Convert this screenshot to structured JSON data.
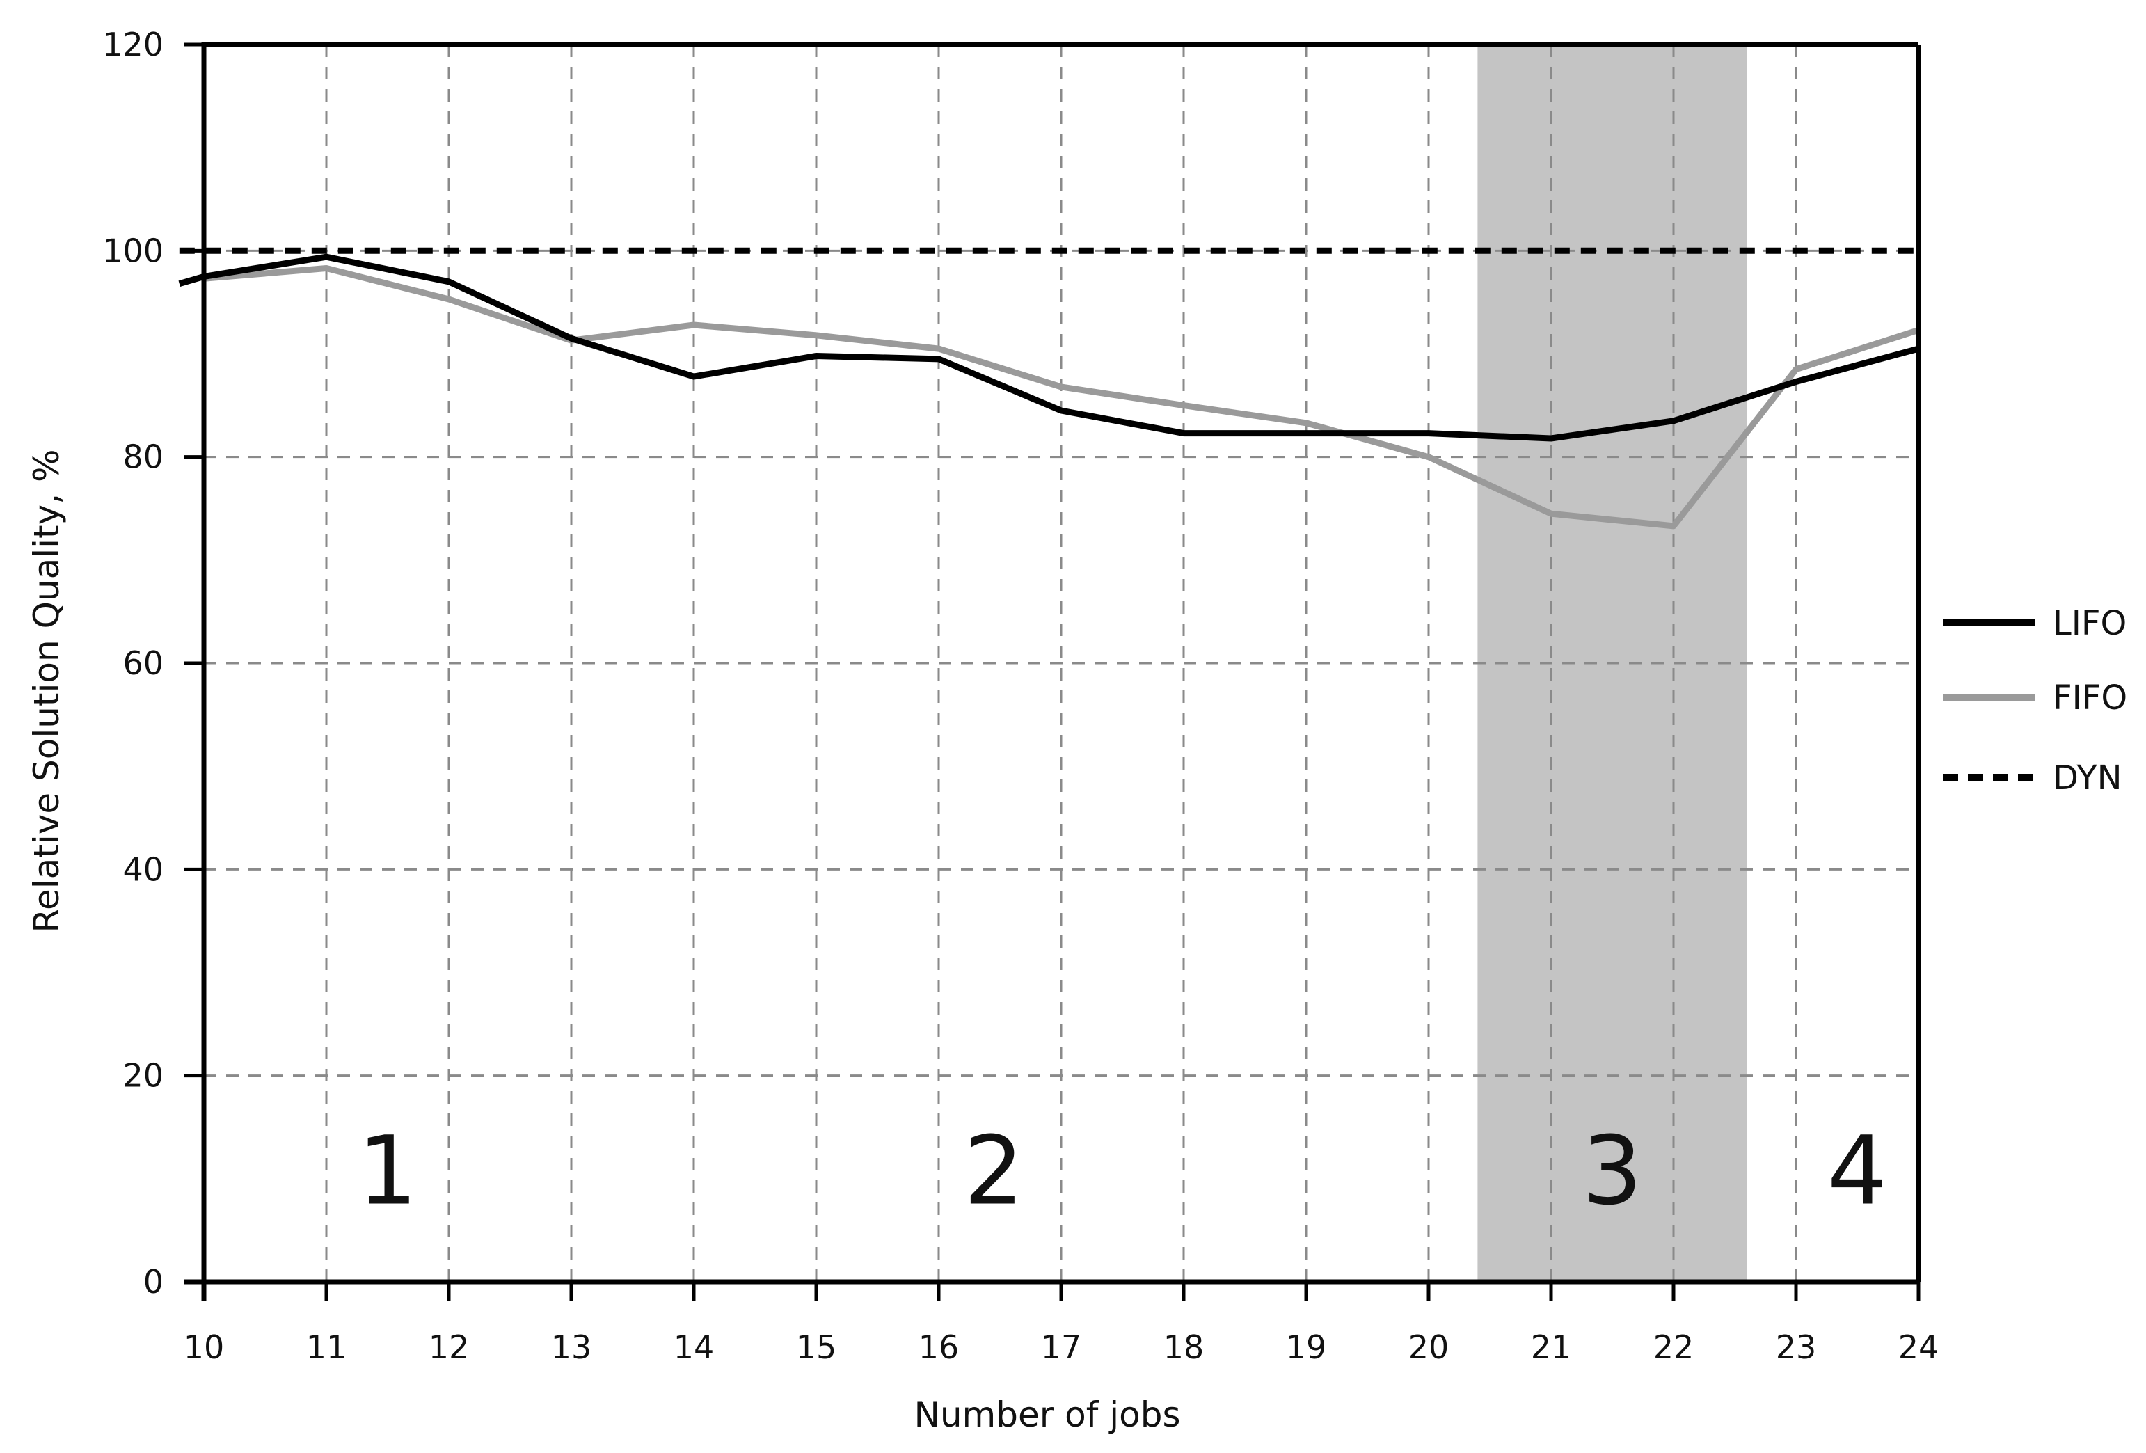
{
  "chart_data": {
    "type": "line",
    "title": "",
    "xlabel": "Number of jobs",
    "ylabel": "Relative Solution Quality, %",
    "xlim": [
      10,
      24
    ],
    "ylim": [
      0,
      120
    ],
    "xticks": [
      10,
      11,
      12,
      13,
      14,
      15,
      16,
      17,
      18,
      19,
      20,
      21,
      22,
      23,
      24
    ],
    "yticks": [
      0,
      20,
      40,
      60,
      80,
      100,
      120
    ],
    "grid": true,
    "legend_position": "right",
    "highlight_band": {
      "x_start": 20.4,
      "x_end": 22.6,
      "color": "#c4c4c4"
    },
    "regions": [
      {
        "label": "1",
        "x": 11.5,
        "y": 8
      },
      {
        "label": "2",
        "x": 16.45,
        "y": 8
      },
      {
        "label": "3",
        "x": 21.5,
        "y": 8
      },
      {
        "label": "4",
        "x": 23.5,
        "y": 8
      }
    ],
    "series": [
      {
        "name": "LIFO",
        "color": "#000000",
        "style": "solid",
        "x": [
          9.8,
          10,
          11,
          12,
          13,
          14,
          15,
          16,
          17,
          18,
          19,
          20,
          21,
          22,
          23,
          24
        ],
        "values": [
          96.8,
          97.5,
          99.4,
          97.0,
          91.5,
          87.8,
          89.8,
          89.5,
          84.5,
          82.3,
          82.3,
          82.3,
          81.8,
          83.5,
          87.3,
          90.5
        ]
      },
      {
        "name": "FIFO",
        "color": "#9a9a9a",
        "style": "solid",
        "x": [
          10,
          11,
          12,
          13,
          14,
          15,
          16,
          17,
          18,
          19,
          20,
          21,
          22,
          23,
          24
        ],
        "values": [
          97.3,
          98.3,
          95.3,
          91.3,
          92.8,
          91.8,
          90.5,
          86.8,
          85.0,
          83.3,
          80.0,
          74.5,
          73.3,
          88.5,
          92.3
        ]
      },
      {
        "name": "DYN",
        "color": "#000000",
        "style": "dashed",
        "x": [
          9.8,
          24
        ],
        "values": [
          100,
          100
        ]
      }
    ]
  }
}
